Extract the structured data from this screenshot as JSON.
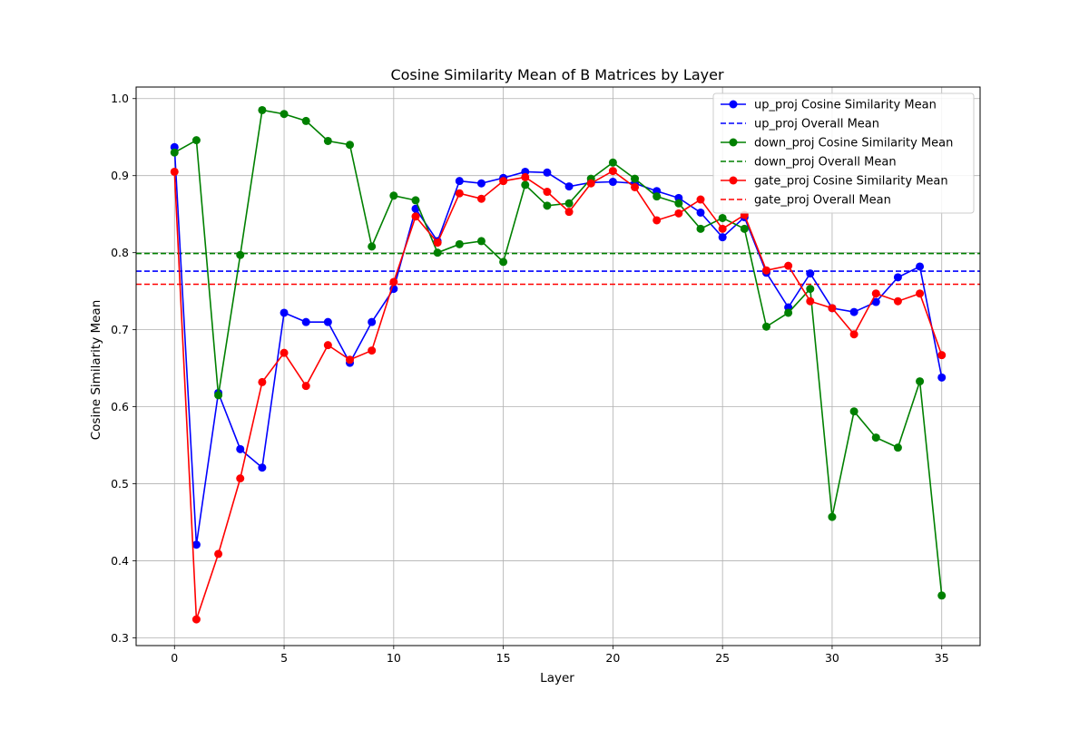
{
  "chart_data": {
    "type": "line",
    "title": "Cosine Similarity Mean of B Matrices by Layer",
    "xlabel": "Layer",
    "ylabel": "Cosine Similarity Mean",
    "xlim": [
      -1.75,
      36.75
    ],
    "ylim": [
      0.29,
      1.015
    ],
    "x_ticks": [
      0,
      5,
      10,
      15,
      20,
      25,
      30,
      35
    ],
    "y_ticks": [
      0.3,
      0.4,
      0.5,
      0.6,
      0.7,
      0.8,
      0.9,
      1.0
    ],
    "x_tick_labels": [
      "0",
      "5",
      "10",
      "15",
      "20",
      "25",
      "30",
      "35"
    ],
    "y_tick_labels": [
      "0.3",
      "0.4",
      "0.5",
      "0.6",
      "0.7",
      "0.8",
      "0.9",
      "1.0"
    ],
    "grid": true,
    "legend_position": "top-right",
    "x": [
      0,
      1,
      2,
      3,
      4,
      5,
      6,
      7,
      8,
      9,
      10,
      11,
      12,
      13,
      14,
      15,
      16,
      17,
      18,
      19,
      20,
      21,
      22,
      23,
      24,
      25,
      26,
      27,
      28,
      29,
      30,
      31,
      32,
      33,
      34,
      35
    ],
    "series": [
      {
        "name": "up_proj Cosine Similarity Mean",
        "color": "#0000ff",
        "style": "solid-marker",
        "values": [
          0.937,
          0.421,
          0.618,
          0.545,
          0.521,
          0.722,
          0.71,
          0.71,
          0.657,
          0.71,
          0.753,
          0.857,
          0.815,
          0.893,
          0.89,
          0.897,
          0.905,
          0.904,
          0.886,
          0.891,
          0.892,
          0.89,
          0.88,
          0.871,
          0.852,
          0.82,
          0.846,
          0.774,
          0.729,
          0.773,
          0.728,
          0.723,
          0.736,
          0.768,
          0.782,
          0.638
        ]
      },
      {
        "name": "up_proj Overall Mean",
        "color": "#0000ff",
        "style": "dashed",
        "hline": 0.776
      },
      {
        "name": "down_proj Cosine Similarity Mean",
        "color": "#008000",
        "style": "solid-marker",
        "values": [
          0.93,
          0.946,
          0.615,
          0.797,
          0.985,
          0.98,
          0.971,
          0.945,
          0.94,
          0.808,
          0.874,
          0.868,
          0.8,
          0.811,
          0.815,
          0.788,
          0.888,
          0.861,
          0.864,
          0.896,
          0.917,
          0.896,
          0.873,
          0.864,
          0.831,
          0.845,
          0.831,
          0.704,
          0.722,
          0.753,
          0.457,
          0.594,
          0.56,
          0.547,
          0.633,
          0.355
        ]
      },
      {
        "name": "down_proj Overall Mean",
        "color": "#008000",
        "style": "dashed",
        "hline": 0.799
      },
      {
        "name": "gate_proj Cosine Similarity Mean",
        "color": "#ff0000",
        "style": "solid-marker",
        "values": [
          0.905,
          0.324,
          0.409,
          0.507,
          0.632,
          0.67,
          0.627,
          0.68,
          0.661,
          0.673,
          0.762,
          0.847,
          0.813,
          0.877,
          0.87,
          0.893,
          0.898,
          0.879,
          0.853,
          0.89,
          0.906,
          0.885,
          0.842,
          0.851,
          0.869,
          0.831,
          0.849,
          0.777,
          0.783,
          0.737,
          0.728,
          0.694,
          0.747,
          0.737,
          0.747,
          0.667
        ]
      },
      {
        "name": "gate_proj Overall Mean",
        "color": "#ff0000",
        "style": "dashed",
        "hline": 0.759
      }
    ]
  }
}
